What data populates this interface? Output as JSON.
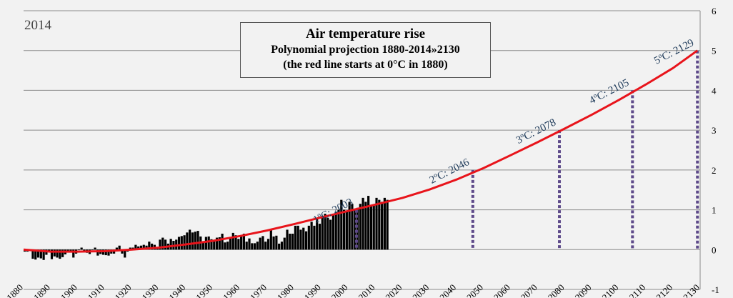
{
  "chart_data": {
    "type": "bar",
    "title": "Air temperature rise",
    "subtitle": "Polynomial projection 1880-2014»2130",
    "note": "(the red line starts at 0°C in 1880)",
    "corner_label": "2014",
    "xlabel": "",
    "ylabel": "",
    "xlim": [
      1880,
      2130
    ],
    "ylim": [
      -1,
      6
    ],
    "x_ticks": [
      "1880",
      "1890",
      "1900",
      "1910",
      "1920",
      "1930",
      "1940",
      "1950",
      "1960",
      "1970",
      "1980",
      "1990",
      "2000",
      "2010",
      "2020",
      "2030",
      "2040",
      "2050",
      "2060",
      "2070",
      "2080",
      "2090",
      "2100",
      "2110",
      "2120",
      "2130"
    ],
    "y_ticks": [
      "6",
      "5",
      "4",
      "3",
      "2",
      "1",
      "0",
      "-1"
    ],
    "y_axis_side": "right",
    "grid": true,
    "colors": {
      "bars": "#000000",
      "projection": "#e8141b",
      "milestones": "#5e4a8a",
      "background": "#f2f2f2"
    },
    "series": [
      {
        "kind": "bar",
        "start_year": 1880,
        "values": [
          -0.05,
          -0.05,
          -0.03,
          -0.23,
          -0.25,
          -0.2,
          -0.22,
          -0.26,
          -0.13,
          -0.05,
          -0.24,
          -0.17,
          -0.2,
          -0.23,
          -0.19,
          -0.12,
          -0.06,
          -0.06,
          -0.2,
          -0.1,
          0.0,
          0.05,
          -0.06,
          -0.08,
          -0.11,
          0.0,
          0.05,
          -0.15,
          -0.11,
          -0.13,
          -0.14,
          -0.15,
          -0.1,
          -0.1,
          0.05,
          0.1,
          -0.1,
          -0.2,
          -0.05,
          0.05,
          0.05,
          0.12,
          0.08,
          0.1,
          0.12,
          0.1,
          0.2,
          0.15,
          0.12,
          0.05,
          0.25,
          0.3,
          0.25,
          0.15,
          0.27,
          0.22,
          0.25,
          0.32,
          0.34,
          0.36,
          0.43,
          0.5,
          0.43,
          0.45,
          0.47,
          0.33,
          0.2,
          0.32,
          0.33,
          0.26,
          0.24,
          0.3,
          0.31,
          0.4,
          0.18,
          0.2,
          0.28,
          0.42,
          0.36,
          0.27,
          0.33,
          0.4,
          0.2,
          0.28,
          0.16,
          0.16,
          0.2,
          0.3,
          0.34,
          0.2,
          0.27,
          0.5,
          0.33,
          0.35,
          0.15,
          0.2,
          0.3,
          0.5,
          0.4,
          0.4,
          0.6,
          0.6,
          0.5,
          0.55,
          0.46,
          0.6,
          0.7,
          0.6,
          0.8,
          0.65,
          0.85,
          0.9,
          0.8,
          0.75,
          0.9,
          0.95,
          1.0,
          1.25,
          1.0,
          0.95,
          1.2,
          1.15,
          1.0,
          1.05,
          1.15,
          1.3,
          1.2,
          1.35,
          1.1,
          1.1,
          1.3,
          1.25,
          1.2,
          1.3,
          1.25
        ]
      },
      {
        "kind": "line",
        "name": "",
        "x": [
          1880,
          1890,
          1900,
          1910,
          1920,
          1930,
          1940,
          1950,
          1960,
          1970,
          1980,
          1990,
          2000,
          2010,
          2020,
          2030,
          2040,
          2050,
          2060,
          2070,
          2080,
          2090,
          2100,
          2110,
          2120,
          2129
        ],
        "y": [
          0.0,
          -0.05,
          -0.05,
          -0.04,
          0.0,
          0.05,
          0.13,
          0.22,
          0.34,
          0.48,
          0.64,
          0.81,
          0.97,
          1.13,
          1.3,
          1.51,
          1.76,
          2.05,
          2.37,
          2.7,
          3.04,
          3.39,
          3.76,
          4.15,
          4.56,
          5.0
        ]
      }
    ],
    "milestones": [
      {
        "label": "1ºC: 2003",
        "year": 2003,
        "value": 1
      },
      {
        "label": "2ºC: 2046",
        "year": 2046,
        "value": 2
      },
      {
        "label": "3ºC: 2078",
        "year": 2078,
        "value": 3
      },
      {
        "label": "4ºC: 2105",
        "year": 2105,
        "value": 4
      },
      {
        "label": "5ºC: 2129",
        "year": 2129,
        "value": 5
      }
    ]
  }
}
